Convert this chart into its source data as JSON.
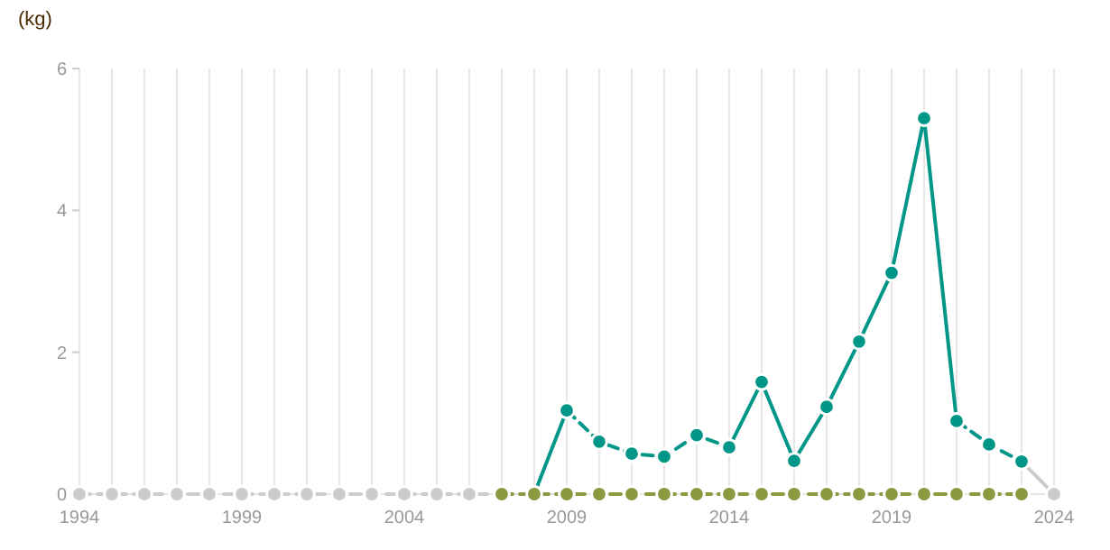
{
  "chart_data": {
    "type": "line",
    "ylabel": "(kg)",
    "xlim": [
      1994,
      2024
    ],
    "ylim": [
      0,
      6
    ],
    "yticks": [
      0,
      2,
      4,
      6
    ],
    "xticks": [
      1994,
      {
        "value": 1995,
        "label": null
      },
      {
        "value": 1996,
        "label": null
      },
      {
        "value": 1997,
        "label": null
      },
      {
        "value": 1998,
        "label": null
      },
      1999,
      {
        "value": 2000,
        "label": null
      },
      {
        "value": 2001,
        "label": null
      },
      {
        "value": 2002,
        "label": null
      },
      {
        "value": 2003,
        "label": null
      },
      2004,
      {
        "value": 2005,
        "label": null
      },
      {
        "value": 2006,
        "label": null
      },
      {
        "value": 2007,
        "label": null
      },
      {
        "value": 2008,
        "label": null
      },
      2009,
      {
        "value": 2010,
        "label": null
      },
      {
        "value": 2011,
        "label": null
      },
      {
        "value": 2012,
        "label": null
      },
      {
        "value": 2013,
        "label": null
      },
      2014,
      {
        "value": 2015,
        "label": null
      },
      {
        "value": 2016,
        "label": null
      },
      {
        "value": 2017,
        "label": null
      },
      {
        "value": 2018,
        "label": null
      },
      2019,
      {
        "value": 2020,
        "label": null
      },
      {
        "value": 2021,
        "label": null
      },
      {
        "value": 2022,
        "label": null
      },
      {
        "value": 2023,
        "label": null
      },
      2024
    ],
    "grid": "x",
    "series": [
      {
        "color": "#cccccc",
        "line_style": "dashed",
        "marker": "circle",
        "x": [
          1994,
          1995,
          1996,
          1997,
          1998,
          1999,
          2000,
          2001,
          2002,
          2003,
          2004,
          2005,
          2006,
          2007
        ],
        "values": [
          0,
          0,
          0,
          0,
          0,
          0,
          0,
          0,
          0,
          0,
          0,
          0,
          0,
          0
        ]
      },
      {
        "color": "#cccccc",
        "line_style": "solid",
        "marker": "circle",
        "x": [
          2023,
          2024
        ],
        "values": [
          0.46,
          0
        ]
      },
      {
        "color": "#009688",
        "line_style": "solid",
        "marker": "circle",
        "x": [
          2008,
          2009,
          2010,
          2011,
          2012,
          2013,
          2014,
          2015,
          2016,
          2017,
          2018,
          2019,
          2020,
          2021
        ],
        "values": [
          0,
          1.18,
          null,
          null,
          null,
          null,
          0.66,
          1.58,
          0.47,
          1.23,
          2.15,
          3.12,
          5.3,
          1.03
        ]
      },
      {
        "color": "#009688",
        "line_style": "dashed",
        "marker": "circle",
        "x": [
          2009,
          2010,
          2011,
          2012,
          2013,
          2014,
          2015,
          2016,
          2017,
          2018,
          2019,
          2020,
          2021,
          2022,
          2023
        ],
        "values": [
          1.18,
          0.74,
          0.57,
          0.53,
          0.83,
          0.66,
          null,
          null,
          null,
          null,
          null,
          null,
          1.03,
          0.7,
          0.46
        ]
      },
      {
        "color": "#8a9a3f",
        "line_style": "dashed",
        "marker": "circle",
        "x": [
          2007,
          2008,
          2009,
          2010,
          2011,
          2012,
          2013,
          2014,
          2015,
          2016,
          2017,
          2018,
          2019,
          2020,
          2021,
          2022,
          2023
        ],
        "values": [
          0,
          0,
          0,
          0,
          0,
          0,
          0,
          0,
          0,
          0,
          0,
          0,
          0,
          0,
          0,
          0,
          0
        ]
      }
    ]
  }
}
